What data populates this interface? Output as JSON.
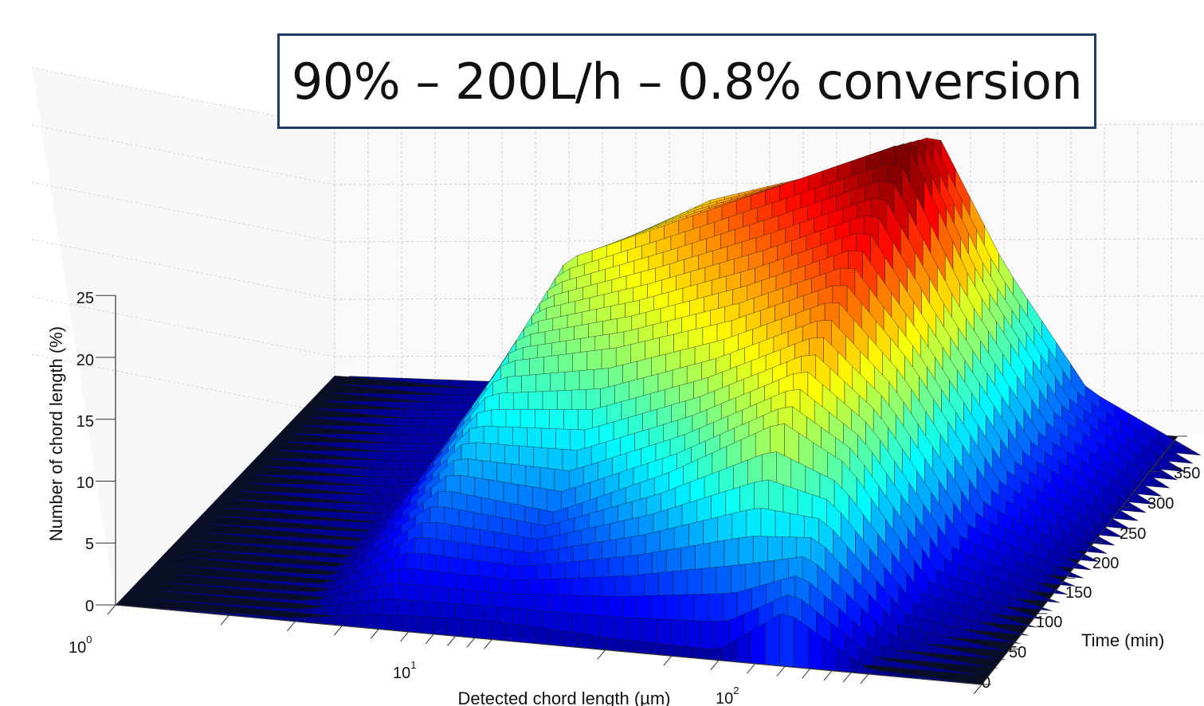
{
  "chart_data": {
    "type": "surface3d",
    "title": "90% – 200L/h – 0.8% conversion",
    "xlabel": "Detected chord length (µm)",
    "ylabel": "Time (min)",
    "zlabel": "Number of chord length  (%)",
    "x_scale": "log",
    "xlim": [
      1,
      200
    ],
    "ylim": [
      0,
      350
    ],
    "zlim": [
      0,
      25
    ],
    "x_ticks": [
      {
        "base": "10",
        "exp": "0",
        "value": 1
      },
      {
        "base": "10",
        "exp": "1",
        "value": 10
      },
      {
        "base": "10",
        "exp": "2",
        "value": 100
      }
    ],
    "y_ticks": [
      "0",
      "50",
      "100",
      "150",
      "200",
      "250",
      "300",
      "350"
    ],
    "z_ticks": [
      "0",
      "5",
      "10",
      "15",
      "20",
      "25"
    ],
    "grid": true,
    "colormap": "jet",
    "surface_samples": [
      {
        "time": 0,
        "x": [
          1,
          3,
          5,
          10,
          20,
          40,
          60,
          100,
          200
        ],
        "z": [
          0,
          0.3,
          1.2,
          1.5,
          1.0,
          0.8,
          4.5,
          0.4,
          0
        ]
      },
      {
        "time": 100,
        "x": [
          1,
          3,
          5,
          10,
          20,
          40,
          60,
          100,
          200
        ],
        "z": [
          0,
          0.5,
          6.0,
          5.0,
          9.0,
          14.0,
          11.0,
          2.0,
          0
        ]
      },
      {
        "time": 200,
        "x": [
          1,
          3,
          5,
          10,
          20,
          40,
          60,
          100,
          200
        ],
        "z": [
          0,
          1.0,
          11.0,
          13.0,
          16.0,
          20.0,
          14.0,
          4.0,
          0
        ]
      },
      {
        "time": 300,
        "x": [
          1,
          3,
          5,
          10,
          20,
          40,
          60,
          100,
          200
        ],
        "z": [
          0,
          1.2,
          14.0,
          18.0,
          22.0,
          26.0,
          15.0,
          5.0,
          0
        ]
      },
      {
        "time": 350,
        "x": [
          1,
          3,
          5,
          10,
          20,
          40,
          60,
          100,
          200
        ],
        "z": [
          0,
          0.8,
          12.0,
          17.0,
          20.0,
          24.0,
          14.0,
          4.5,
          0
        ]
      }
    ]
  }
}
